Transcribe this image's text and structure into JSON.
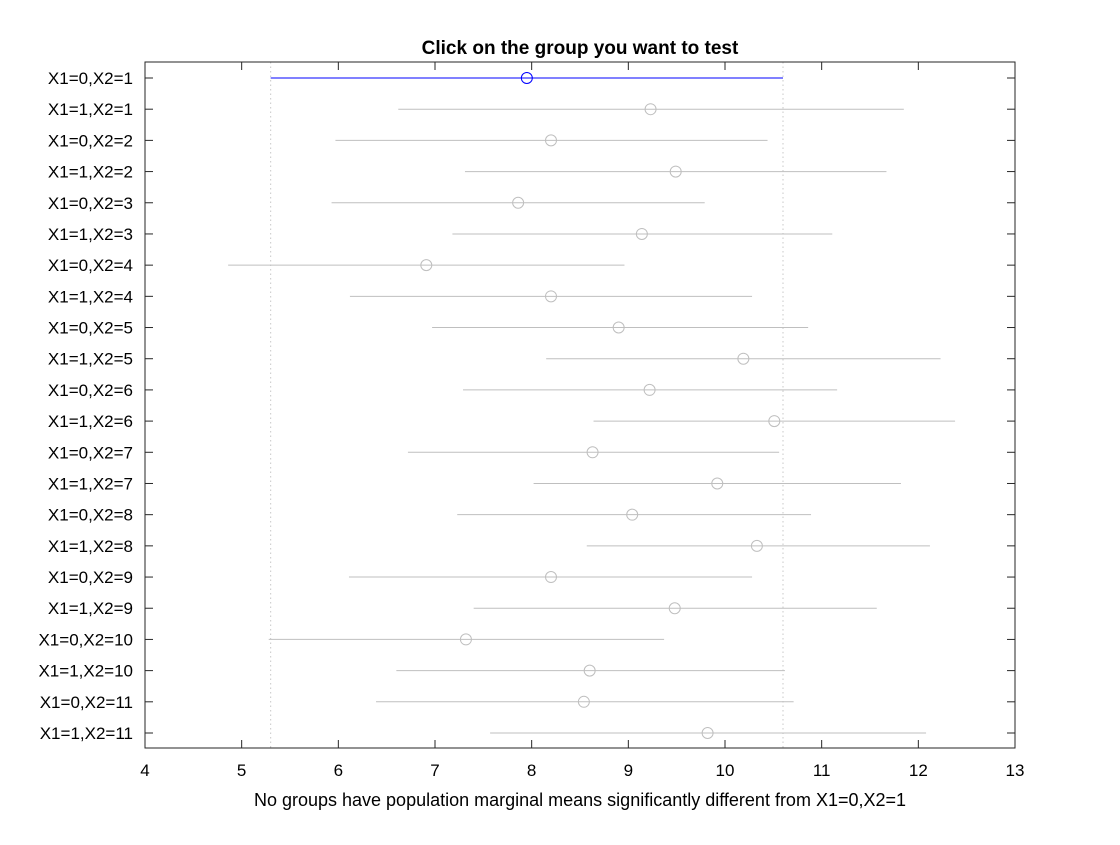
{
  "chart_data": {
    "type": "scatter",
    "subtype": "multcompare-interval-plot",
    "title": "Click on the group you want to test",
    "xlabel": "No groups have population marginal means significantly different from X1=0,X2=1",
    "ylabel": "",
    "xlim": [
      4,
      13
    ],
    "xticks": [
      4,
      5,
      6,
      7,
      8,
      9,
      10,
      11,
      12,
      13
    ],
    "grid": false,
    "legend": "none",
    "selected_group": "X1=0,X2=1",
    "reference_lines": [
      5.3,
      10.6
    ],
    "groups": [
      {
        "label": "X1=0,X2=1",
        "mean": 7.95,
        "lower": 5.3,
        "upper": 10.6
      },
      {
        "label": "X1=1,X2=1",
        "mean": 9.23,
        "lower": 6.62,
        "upper": 11.85
      },
      {
        "label": "X1=0,X2=2",
        "mean": 8.2,
        "lower": 5.97,
        "upper": 10.44
      },
      {
        "label": "X1=1,X2=2",
        "mean": 9.49,
        "lower": 7.31,
        "upper": 11.67
      },
      {
        "label": "X1=0,X2=3",
        "mean": 7.86,
        "lower": 5.93,
        "upper": 9.79
      },
      {
        "label": "X1=1,X2=3",
        "mean": 9.14,
        "lower": 7.18,
        "upper": 11.11
      },
      {
        "label": "X1=0,X2=4",
        "mean": 6.91,
        "lower": 4.86,
        "upper": 8.96
      },
      {
        "label": "X1=1,X2=4",
        "mean": 8.2,
        "lower": 6.12,
        "upper": 10.28
      },
      {
        "label": "X1=0,X2=5",
        "mean": 8.9,
        "lower": 6.97,
        "upper": 10.86
      },
      {
        "label": "X1=1,X2=5",
        "mean": 10.19,
        "lower": 8.15,
        "upper": 12.23
      },
      {
        "label": "X1=0,X2=6",
        "mean": 9.22,
        "lower": 7.29,
        "upper": 11.16
      },
      {
        "label": "X1=1,X2=6",
        "mean": 10.51,
        "lower": 8.64,
        "upper": 12.38
      },
      {
        "label": "X1=0,X2=7",
        "mean": 8.63,
        "lower": 6.72,
        "upper": 10.56
      },
      {
        "label": "X1=1,X2=7",
        "mean": 9.92,
        "lower": 8.02,
        "upper": 11.82
      },
      {
        "label": "X1=0,X2=8",
        "mean": 9.04,
        "lower": 7.23,
        "upper": 10.89
      },
      {
        "label": "X1=1,X2=8",
        "mean": 10.33,
        "lower": 8.57,
        "upper": 12.12
      },
      {
        "label": "X1=0,X2=9",
        "mean": 8.2,
        "lower": 6.11,
        "upper": 10.28
      },
      {
        "label": "X1=1,X2=9",
        "mean": 9.48,
        "lower": 7.4,
        "upper": 11.57
      },
      {
        "label": "X1=0,X2=10",
        "mean": 7.32,
        "lower": 5.28,
        "upper": 9.37
      },
      {
        "label": "X1=1,X2=10",
        "mean": 8.6,
        "lower": 6.6,
        "upper": 10.62
      },
      {
        "label": "X1=0,X2=11",
        "mean": 8.54,
        "lower": 6.39,
        "upper": 10.71
      },
      {
        "label": "X1=1,X2=11",
        "mean": 9.82,
        "lower": 7.57,
        "upper": 12.08
      }
    ],
    "colors": {
      "selected": "#0000ff",
      "other": "#bfbfbf",
      "reference_line": "#c8c8c8",
      "axes": "#262626"
    }
  }
}
